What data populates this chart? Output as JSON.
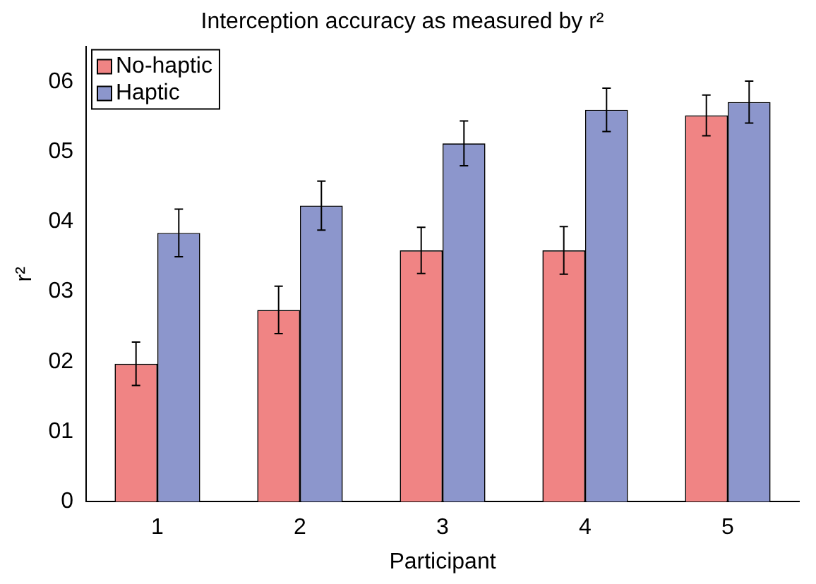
{
  "chart_data": {
    "type": "bar",
    "title": "Interception accuracy as measured by r²",
    "xlabel": "Participant",
    "ylabel": "r²",
    "categories": [
      "1",
      "2",
      "3",
      "4",
      "5"
    ],
    "series": [
      {
        "name": "No-haptic",
        "color": "#f08484",
        "values": [
          1.97,
          2.74,
          3.59,
          3.59,
          5.52
        ],
        "errors": [
          0.31,
          0.34,
          0.33,
          0.34,
          0.29
        ]
      },
      {
        "name": "Haptic",
        "color": "#8c96cc",
        "values": [
          3.84,
          4.23,
          5.12,
          5.6,
          5.71
        ],
        "errors": [
          0.34,
          0.35,
          0.32,
          0.31,
          0.3
        ]
      }
    ],
    "ylim": [
      0,
      6.5
    ],
    "yticks": [
      0,
      {
        "value": 1,
        "label": "01"
      },
      {
        "value": 2,
        "label": "02"
      },
      {
        "value": 3,
        "label": "03"
      },
      {
        "value": 4,
        "label": "04"
      },
      {
        "value": 5,
        "label": "05"
      },
      {
        "value": 6,
        "label": "06"
      }
    ],
    "grid": false,
    "legend": "top left"
  }
}
